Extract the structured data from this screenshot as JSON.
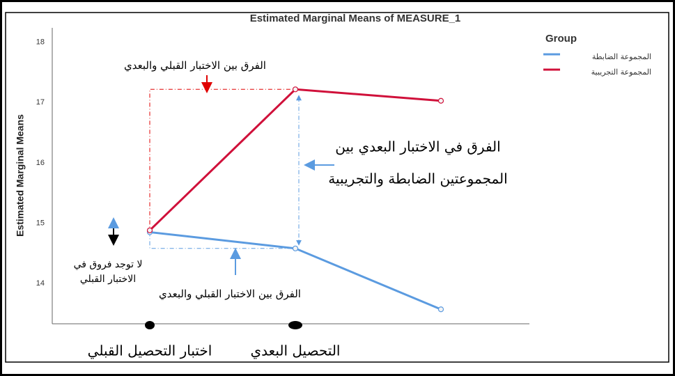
{
  "chart_data": {
    "type": "line",
    "title": "Estimated Marginal Means of MEASURE_1",
    "ylabel": "Estimated Marginal Means",
    "legend_title": "Group",
    "legend": "upper right",
    "categories": [
      "اختبار التحصيل القبلي",
      "التحصيل البعدي",
      null
    ],
    "series": [
      {
        "name": "المجموعة الضابطة",
        "color": "#5b9be0",
        "values": [
          14.85,
          14.58,
          13.57
        ]
      },
      {
        "name": "المجموعة التجريبية",
        "color": "#d0103a",
        "values": [
          14.88,
          17.22,
          17.03
        ]
      }
    ],
    "ylim": [
      13.33,
      18.24
    ],
    "yticks": [
      14,
      15,
      16,
      17,
      18
    ],
    "grid": false,
    "annotations": [
      "الفرق بين الاختبار القبلي والبعدي",
      "الفرق في الاختبار البعدي بين",
      "المجموعتين الضابطة والتجريبية",
      "لا توجد فروق في",
      "الاختبار القبلي",
      "الفرق بين الاختبار القبلي والبعدي"
    ]
  }
}
